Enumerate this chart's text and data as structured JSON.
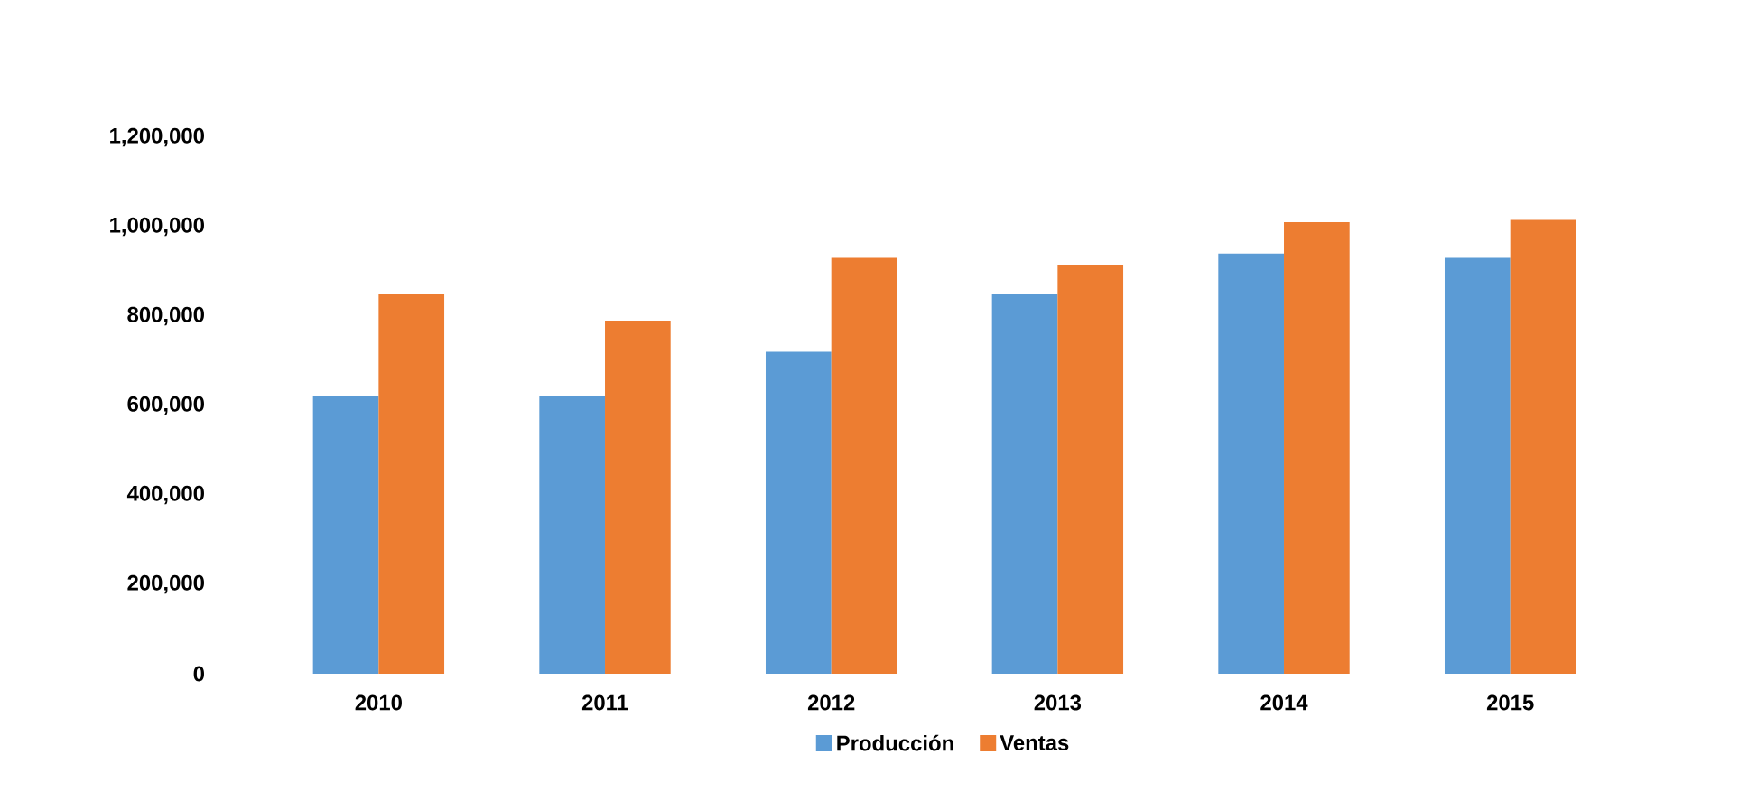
{
  "chart_data": {
    "type": "bar",
    "categories": [
      "2010",
      "2011",
      "2012",
      "2013",
      "2014",
      "2015"
    ],
    "series": [
      {
        "name": "Producción",
        "color": "#5b9bd5",
        "values": [
          620000,
          620000,
          720000,
          850000,
          940000,
          930000
        ]
      },
      {
        "name": "Ventas",
        "color": "#ed7d31",
        "values": [
          850000,
          790000,
          930000,
          915000,
          1010000,
          1015000
        ]
      }
    ],
    "ylim": [
      0,
      1200000
    ],
    "yticks": [
      {
        "value": 0,
        "label": "0"
      },
      {
        "value": 200000,
        "label": "200,000"
      },
      {
        "value": 400000,
        "label": "400,000"
      },
      {
        "value": 600000,
        "label": "600,000"
      },
      {
        "value": 800000,
        "label": "800,000"
      },
      {
        "value": 1000000,
        "label": "1,000,000"
      },
      {
        "value": 1200000,
        "label": "1,200,000"
      }
    ],
    "legend": "bottom"
  }
}
